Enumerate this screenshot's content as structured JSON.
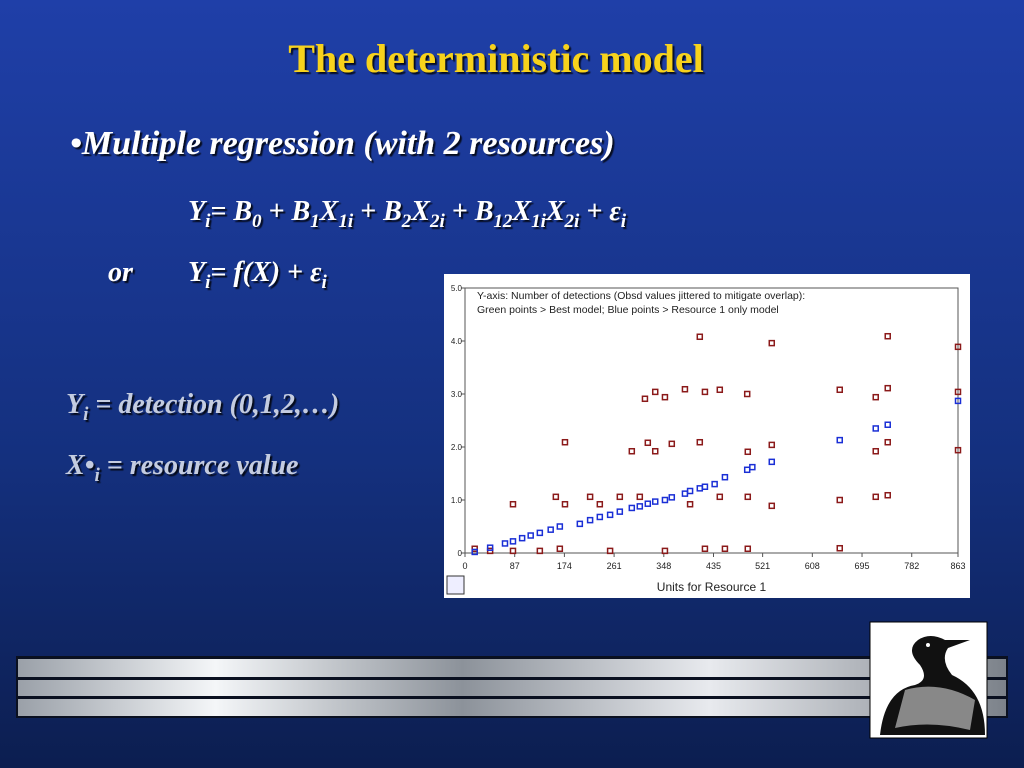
{
  "title": "The deterministic model",
  "bullet": "•Multiple regression (with 2 resources)",
  "equation1": [
    [
      "Y",
      "i"
    ],
    [
      "= B",
      "0"
    ],
    [
      " + B",
      "1"
    ],
    [
      "X",
      "1i"
    ],
    [
      " + B",
      "2"
    ],
    [
      "X",
      "2i"
    ],
    [
      " + B",
      "12"
    ],
    [
      "X",
      "1i"
    ],
    [
      "X",
      "2i"
    ],
    [
      "  + ε",
      "i"
    ]
  ],
  "or": "or",
  "equation2": [
    [
      "Y",
      "i"
    ],
    [
      "= f(X)  + ε",
      "i"
    ]
  ],
  "definition1": [
    [
      "Y",
      "i"
    ],
    [
      "  = detection (0,1,2,…)"
    ]
  ],
  "definition2": [
    [
      "X•",
      "i"
    ],
    [
      " = resource value"
    ]
  ],
  "chart_data": {
    "type": "scatter",
    "annotations": [
      "Y-axis: Number of detections (Obsd values jittered to mitigate overlap):",
      "Green points > Best model; Blue points > Resource 1 only model"
    ],
    "x_label": "Units for Resource 1",
    "xlim": [
      0,
      863
    ],
    "ylim": [
      0,
      5
    ],
    "xticks": [
      0,
      87,
      174,
      261,
      348,
      435,
      521,
      608,
      695,
      782,
      863
    ],
    "yticks": [
      0,
      {
        "value": 1,
        "label": "1.0"
      },
      {
        "value": 2,
        "label": "2.0"
      },
      {
        "value": 3,
        "label": "3.0"
      },
      {
        "value": 4,
        "label": "4.0"
      },
      {
        "value": 5,
        "label": "5.0"
      }
    ],
    "series": [
      {
        "color": "#8b1a1a",
        "x": [
          17,
          44,
          84,
          84,
          131,
          159,
          175,
          175,
          166,
          219,
          236,
          254,
          271,
          292,
          306,
          315,
          333,
          320,
          333,
          350,
          350,
          362,
          385,
          394,
          411,
          420,
          411,
          420,
          446,
          446,
          455,
          494,
          495,
          495,
          495,
          537,
          537,
          537,
          656,
          656,
          656,
          719,
          719,
          719,
          740,
          740,
          740,
          740,
          863,
          863,
          863
        ],
        "values": [
          0.08,
          0.04,
          0.92,
          0.04,
          0.04,
          1.06,
          0.92,
          2.09,
          0.08,
          1.06,
          0.92,
          0.04,
          1.06,
          1.92,
          1.06,
          2.91,
          3.04,
          2.08,
          1.92,
          2.94,
          0.04,
          2.06,
          3.09,
          0.92,
          4.08,
          3.04,
          2.09,
          0.08,
          3.08,
          1.06,
          0.08,
          3.0,
          1.91,
          1.06,
          0.08,
          3.96,
          2.04,
          0.89,
          3.08,
          1.0,
          0.09,
          2.94,
          1.92,
          1.06,
          4.09,
          3.11,
          2.09,
          1.09,
          3.89,
          3.04,
          1.94
        ]
      },
      {
        "color": "#1a2fd6",
        "x": [
          17,
          44,
          70,
          84,
          100,
          115,
          131,
          150,
          166,
          201,
          219,
          236,
          254,
          271,
          292,
          306,
          320,
          333,
          350,
          362,
          385,
          394,
          411,
          420,
          437,
          455,
          494,
          503,
          537,
          656,
          719,
          740,
          863
        ],
        "values": [
          0.02,
          0.1,
          0.18,
          0.22,
          0.28,
          0.33,
          0.38,
          0.44,
          0.5,
          0.55,
          0.62,
          0.68,
          0.72,
          0.78,
          0.85,
          0.88,
          0.93,
          0.97,
          1.0,
          1.05,
          1.12,
          1.17,
          1.22,
          1.25,
          1.3,
          1.43,
          1.57,
          1.62,
          1.72,
          2.13,
          2.35,
          2.42,
          2.87
        ]
      }
    ]
  }
}
